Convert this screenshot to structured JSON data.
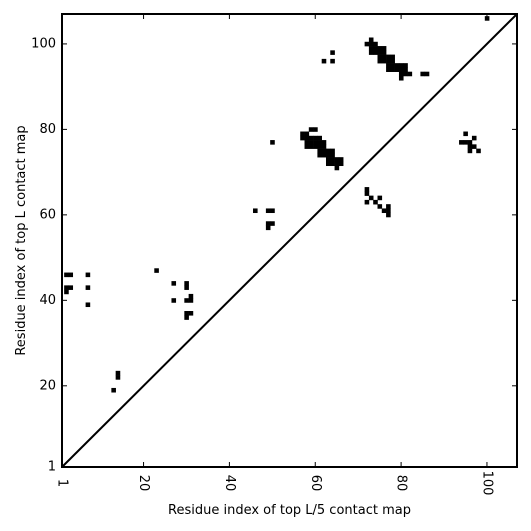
{
  "chart_data": {
    "type": "scatter",
    "xlabel": "Residue index of top L/5 contact map",
    "ylabel": "Residue index of top L contact map",
    "xlim": [
      1,
      107
    ],
    "ylim": [
      1,
      107
    ],
    "grid": false,
    "x_ticks": [
      1,
      20,
      40,
      60,
      80,
      100
    ],
    "y_ticks": [
      1,
      20,
      40,
      60,
      80,
      100
    ],
    "x_tick_labels": [
      "1",
      "20",
      "40",
      "60",
      "80",
      "100"
    ],
    "y_tick_labels": [
      "1",
      "20",
      "40",
      "60",
      "80",
      "100"
    ],
    "diagonal": true,
    "series": [
      {
        "marker": "square",
        "color": "#000000",
        "points": [
          [
            100,
            106
          ],
          [
            2,
            46
          ],
          [
            3,
            46
          ],
          [
            7,
            46
          ],
          [
            2,
            43
          ],
          [
            3,
            43
          ],
          [
            2,
            42
          ],
          [
            7,
            43
          ],
          [
            7,
            39
          ],
          [
            14,
            23
          ],
          [
            14,
            22
          ],
          [
            13,
            19
          ],
          [
            23,
            47
          ],
          [
            27,
            44
          ],
          [
            27,
            40
          ],
          [
            30,
            44
          ],
          [
            30,
            43
          ],
          [
            30,
            40
          ],
          [
            31,
            41
          ],
          [
            31,
            40
          ],
          [
            30,
            37
          ],
          [
            31,
            37
          ],
          [
            30,
            36
          ],
          [
            46,
            61
          ],
          [
            49,
            61
          ],
          [
            50,
            61
          ],
          [
            49,
            58
          ],
          [
            50,
            58
          ],
          [
            49,
            57
          ],
          [
            50,
            77
          ],
          [
            57,
            79
          ],
          [
            58,
            79
          ],
          [
            59,
            80
          ],
          [
            60,
            80
          ],
          [
            57,
            78
          ],
          [
            58,
            78
          ],
          [
            59,
            78
          ],
          [
            60,
            78
          ],
          [
            61,
            78
          ],
          [
            58,
            77
          ],
          [
            59,
            77
          ],
          [
            60,
            77
          ],
          [
            61,
            77
          ],
          [
            62,
            77
          ],
          [
            58,
            76
          ],
          [
            59,
            76
          ],
          [
            60,
            76
          ],
          [
            61,
            76
          ],
          [
            62,
            76
          ],
          [
            61,
            75
          ],
          [
            62,
            75
          ],
          [
            63,
            75
          ],
          [
            64,
            75
          ],
          [
            61,
            74
          ],
          [
            62,
            74
          ],
          [
            63,
            74
          ],
          [
            64,
            74
          ],
          [
            63,
            73
          ],
          [
            64,
            73
          ],
          [
            65,
            73
          ],
          [
            66,
            73
          ],
          [
            63,
            72
          ],
          [
            64,
            72
          ],
          [
            65,
            72
          ],
          [
            66,
            72
          ],
          [
            65,
            71
          ],
          [
            62,
            96
          ],
          [
            64,
            98
          ],
          [
            64,
            96
          ],
          [
            72,
            100
          ],
          [
            73,
            101
          ],
          [
            73,
            100
          ],
          [
            74,
            100
          ],
          [
            73,
            99
          ],
          [
            74,
            99
          ],
          [
            75,
            99
          ],
          [
            76,
            99
          ],
          [
            73,
            98
          ],
          [
            74,
            98
          ],
          [
            75,
            98
          ],
          [
            76,
            98
          ],
          [
            75,
            97
          ],
          [
            76,
            97
          ],
          [
            77,
            97
          ],
          [
            78,
            97
          ],
          [
            75,
            96
          ],
          [
            76,
            96
          ],
          [
            77,
            96
          ],
          [
            78,
            96
          ],
          [
            77,
            95
          ],
          [
            78,
            95
          ],
          [
            79,
            95
          ],
          [
            80,
            95
          ],
          [
            81,
            95
          ],
          [
            77,
            94
          ],
          [
            78,
            94
          ],
          [
            79,
            94
          ],
          [
            80,
            94
          ],
          [
            81,
            94
          ],
          [
            80,
            93
          ],
          [
            81,
            93
          ],
          [
            82,
            93
          ],
          [
            80,
            92
          ],
          [
            85,
            93
          ],
          [
            86,
            93
          ],
          [
            72,
            66
          ],
          [
            72,
            65
          ],
          [
            73,
            64
          ],
          [
            72,
            63
          ],
          [
            74,
            63
          ],
          [
            75,
            64
          ],
          [
            75,
            62
          ],
          [
            76,
            61
          ],
          [
            77,
            62
          ],
          [
            77,
            61
          ],
          [
            77,
            60
          ],
          [
            95,
            79
          ],
          [
            94,
            77
          ],
          [
            95,
            77
          ],
          [
            96,
            77
          ],
          [
            97,
            78
          ],
          [
            96,
            76
          ],
          [
            97,
            76
          ],
          [
            96,
            75
          ],
          [
            98,
            75
          ]
        ]
      }
    ]
  }
}
